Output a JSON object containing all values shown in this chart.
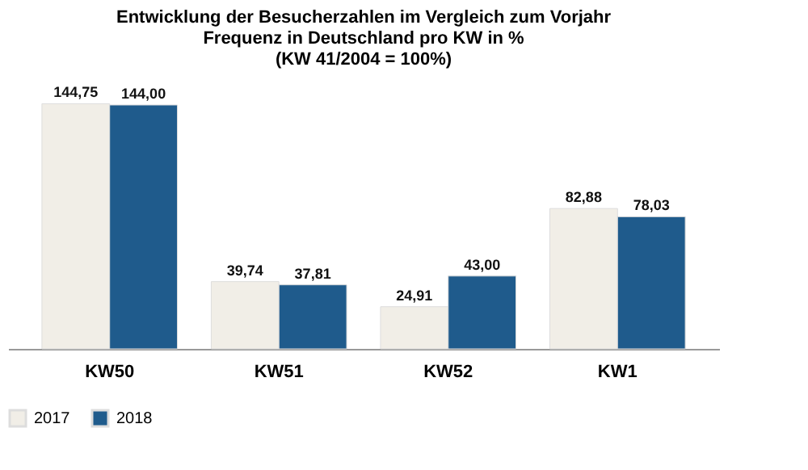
{
  "chart_data": {
    "type": "bar",
    "title": "Entwicklung der Besucherzahlen im Vergleich zum Vorjahr\nFrequenz in Deutschland pro KW in %\n(KW 41/2004 = 100%)",
    "categories": [
      "KW50",
      "KW51",
      "KW52",
      "KW1"
    ],
    "series": [
      {
        "name": "2017",
        "color": "#f1eee7",
        "values": [
          144.75,
          39.74,
          24.91,
          82.88
        ],
        "value_labels": [
          "144,75",
          "39,74",
          "24,91",
          "82,88"
        ]
      },
      {
        "name": "2018",
        "color": "#1f5b8c",
        "values": [
          144.0,
          37.81,
          43.0,
          78.03
        ],
        "value_labels": [
          "144,00",
          "37,81",
          "43,00",
          "78,03"
        ]
      }
    ],
    "legend": "bottom",
    "grid": false
  }
}
